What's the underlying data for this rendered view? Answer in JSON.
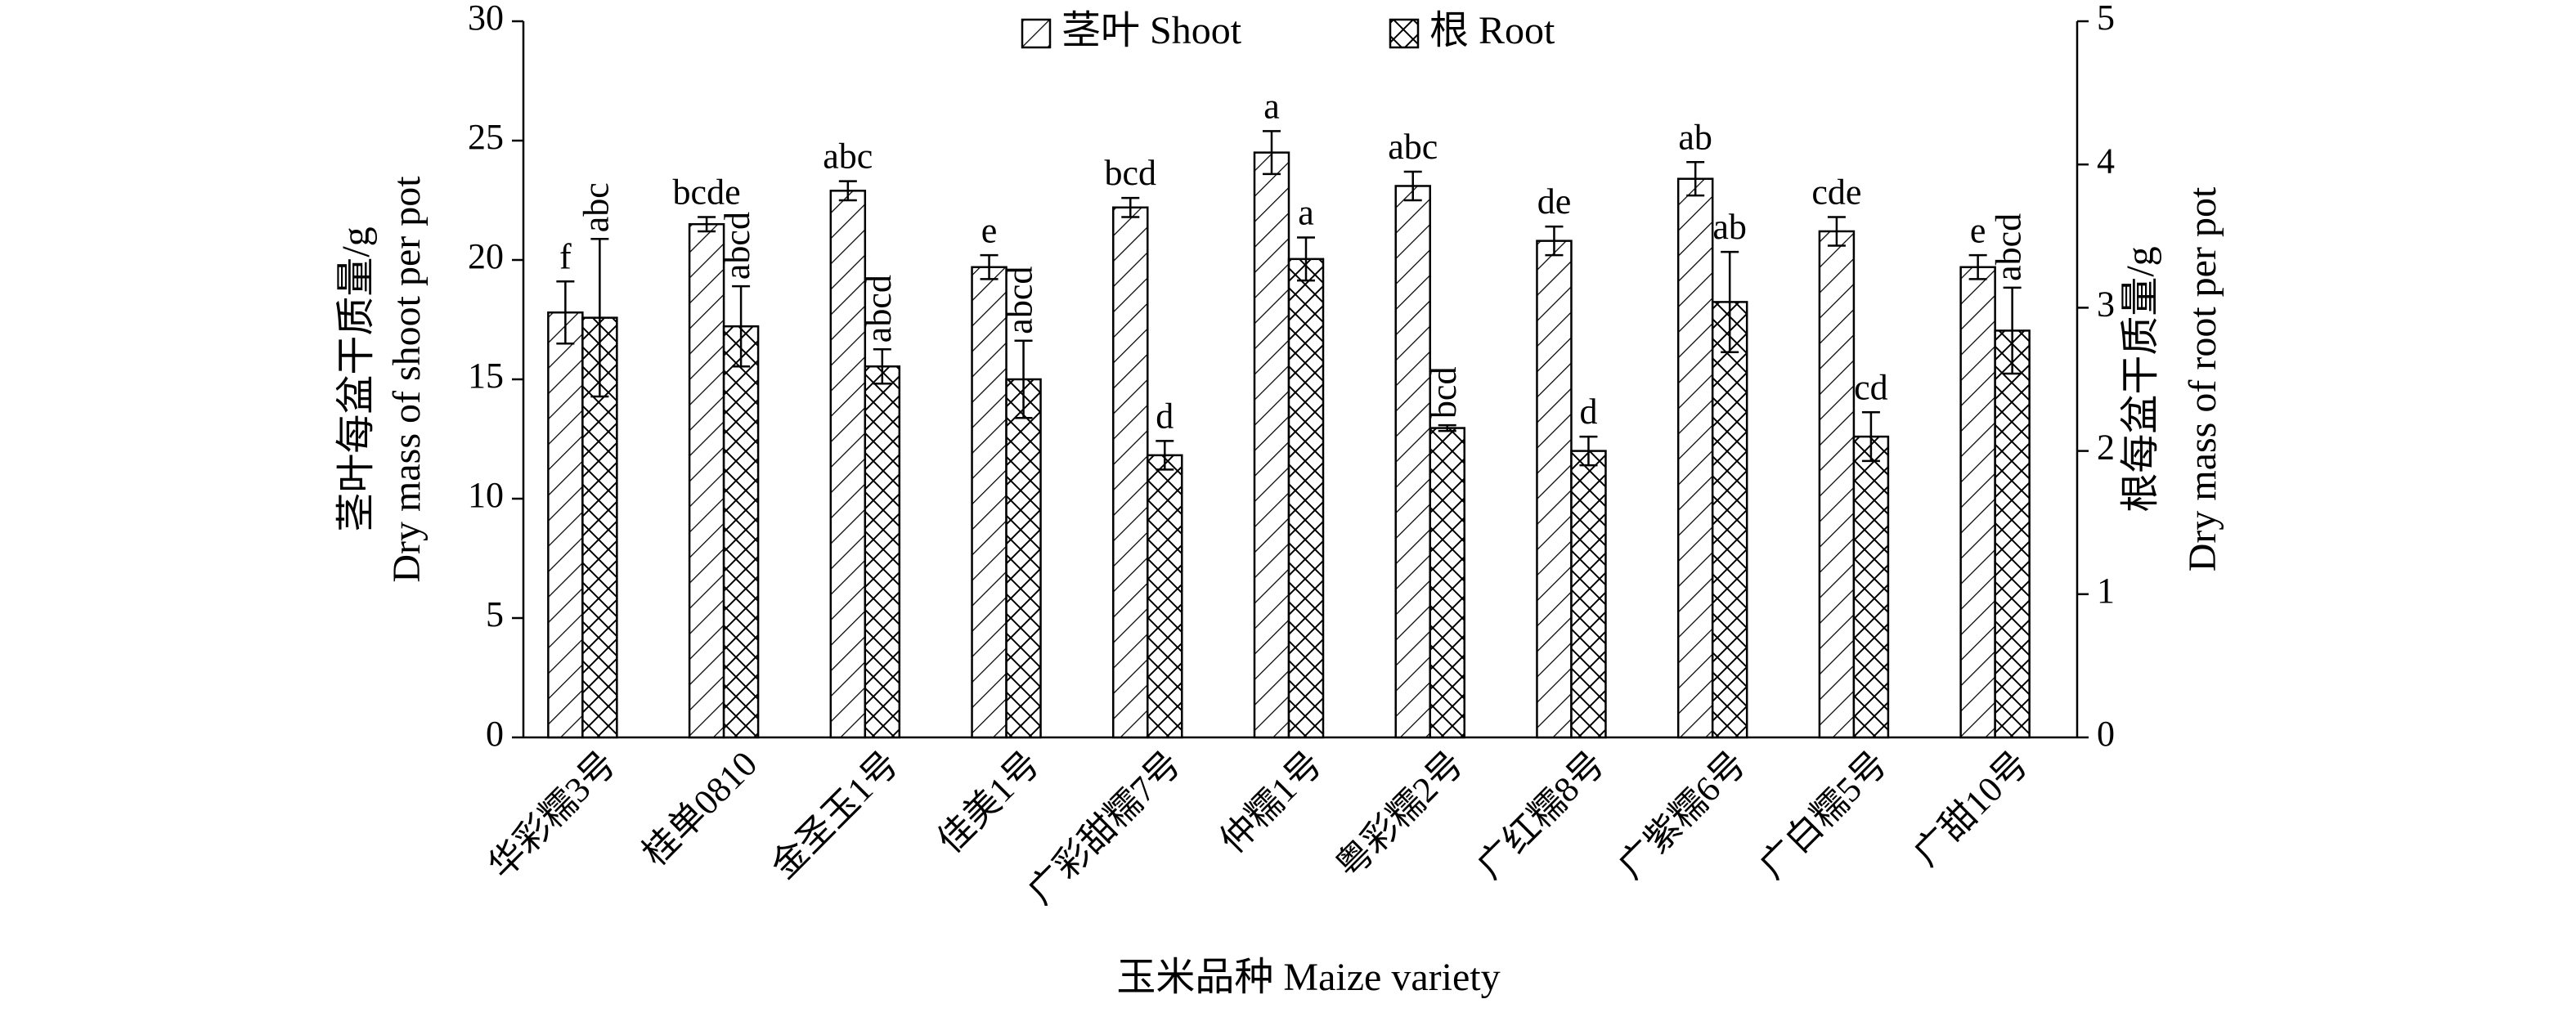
{
  "chart_data": {
    "type": "bar",
    "legend_title": null,
    "x_label": "玉米品种 Maize variety",
    "y_label": [
      "茎叶每盆干质量/g",
      "Dry mass of shoot per pot"
    ],
    "y2_label": [
      "根每盆干质量/g",
      "Dry mass of root per pot"
    ],
    "categories": [
      "华彩糯3号",
      "桂单0810",
      "金圣玉1号",
      "佳美1号",
      "广彩甜糯7号",
      "仲糯1号",
      "粤彩糯2号",
      "广红糯8号",
      "广紫糯6号",
      "广白糯5号",
      "广甜10号"
    ],
    "series": [
      {
        "name": "茎叶 Shoot",
        "color": "#000000",
        "hatch": "/",
        "axis": "y",
        "values": [
          17.8,
          21.5,
          22.9,
          19.7,
          22.2,
          24.5,
          23.1,
          20.8,
          23.4,
          21.2,
          19.7
        ],
        "errors": [
          1.3,
          0.3,
          0.4,
          0.5,
          0.4,
          0.9,
          0.6,
          0.6,
          0.7,
          0.6,
          0.5
        ],
        "annotations": [
          "f",
          "bcde",
          "abc",
          "e",
          "bcd",
          "a",
          "abc",
          "de",
          "ab",
          "cde",
          "e"
        ]
      },
      {
        "name": "根 Root",
        "color": "#000000",
        "hatch": "x",
        "axis": "y2",
        "values": [
          2.93,
          2.87,
          2.59,
          2.5,
          1.97,
          3.34,
          2.16,
          2.0,
          3.04,
          2.1,
          2.84
        ],
        "errors": [
          0.55,
          0.28,
          0.12,
          0.27,
          0.1,
          0.15,
          0.02,
          0.1,
          0.35,
          0.17,
          0.3
        ],
        "annotations": [
          "abc",
          "abcd",
          "abcd",
          "abcd",
          "d",
          "a",
          "bcd",
          "d",
          "ab",
          "cd",
          "abcd"
        ]
      }
    ],
    "ylim": [
      0,
      30
    ],
    "yticks": [
      0,
      5,
      10,
      15,
      20,
      25,
      30
    ],
    "y2lim": [
      0,
      5
    ],
    "y2ticks": [
      0,
      1,
      2,
      3,
      4,
      5
    ],
    "grid": false,
    "legend": "top"
  }
}
